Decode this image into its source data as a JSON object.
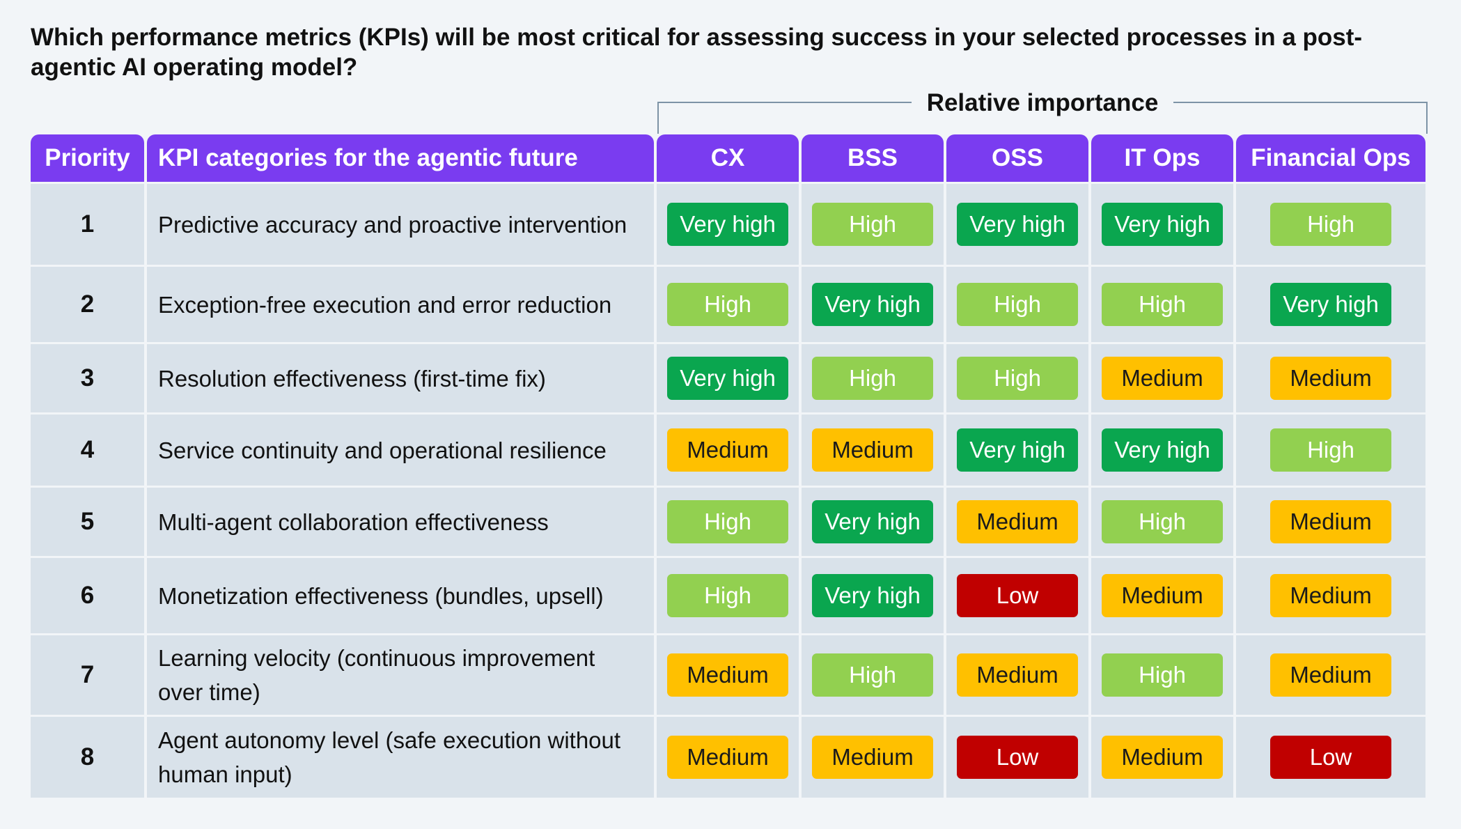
{
  "title": "Which performance metrics (KPIs) will be most critical for assessing success in your selected processes in a post-agentic AI operating model?",
  "group_header": "Relative importance",
  "colors": {
    "header_bg": "#7a3cf0",
    "row_bg": "#d9e2ea",
    "Very high": "#0aa64f",
    "High": "#92d050",
    "Medium": "#ffc000",
    "Low": "#c00000"
  },
  "chart_data": {
    "type": "table",
    "columns": [
      "Priority",
      "KPI categories for the agentic future",
      "CX",
      "BSS",
      "OSS",
      "IT Ops",
      "Financial Ops"
    ],
    "rows": [
      {
        "priority": "1",
        "kpi": "Predictive accuracy and proactive intervention",
        "values": [
          "Very high",
          "High",
          "Very high",
          "Very high",
          "High"
        ]
      },
      {
        "priority": "2",
        "kpi": "Exception-free execution and error reduction",
        "values": [
          "High",
          "Very high",
          "High",
          "High",
          "Very high"
        ]
      },
      {
        "priority": "3",
        "kpi": "Resolution effectiveness (first-time fix)",
        "values": [
          "Very high",
          "High",
          "High",
          "Medium",
          "Medium"
        ]
      },
      {
        "priority": "4",
        "kpi": "Service continuity and operational resilience",
        "values": [
          "Medium",
          "Medium",
          "Very high",
          "Very high",
          "High"
        ]
      },
      {
        "priority": "5",
        "kpi": "Multi-agent collaboration effectiveness",
        "values": [
          "High",
          "Very high",
          "Medium",
          "High",
          "Medium"
        ]
      },
      {
        "priority": "6",
        "kpi": "Monetization effectiveness (bundles, upsell)",
        "values": [
          "High",
          "Very high",
          "Low",
          "Medium",
          "Medium"
        ]
      },
      {
        "priority": "7",
        "kpi": "Learning velocity (continuous improvement over time)",
        "values": [
          "Medium",
          "High",
          "Medium",
          "High",
          "Medium"
        ]
      },
      {
        "priority": "8",
        "kpi": "Agent autonomy level (safe execution without human input)",
        "values": [
          "Medium",
          "Medium",
          "Low",
          "Medium",
          "Low"
        ]
      }
    ]
  }
}
